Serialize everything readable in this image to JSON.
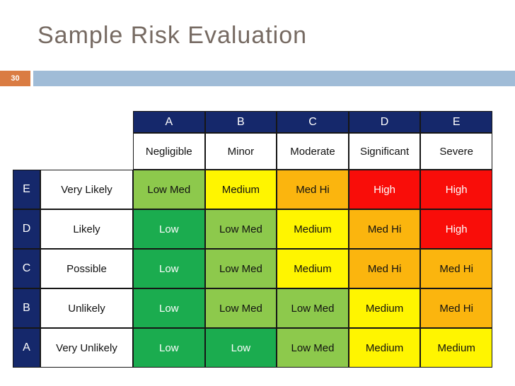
{
  "slide": {
    "title": "Sample Risk Evaluation",
    "page_number": "30"
  },
  "colors": {
    "navy": "#15286b",
    "green": "#1bac4f",
    "light_green": "#8dc94c",
    "yellow": "#fff500",
    "orange": "#fbb50e",
    "red": "#f90d09",
    "accent_bar_blue": "#a0bcd7",
    "page_number_orange": "#da7c43",
    "title_text": "#766a62"
  },
  "matrix": {
    "column_letters": [
      "A",
      "B",
      "C",
      "D",
      "E"
    ],
    "severity_labels": [
      "Negligible",
      "Minor",
      "Moderate",
      "Significant",
      "Severe"
    ],
    "rows": [
      {
        "letter": "E",
        "likelihood": "Very Likely",
        "cells": [
          "Low Med",
          "Medium",
          "Med Hi",
          "High",
          "High"
        ]
      },
      {
        "letter": "D",
        "likelihood": "Likely",
        "cells": [
          "Low",
          "Low Med",
          "Medium",
          "Med Hi",
          "High"
        ]
      },
      {
        "letter": "C",
        "likelihood": "Possible",
        "cells": [
          "Low",
          "Low Med",
          "Medium",
          "Med Hi",
          "Med Hi"
        ]
      },
      {
        "letter": "B",
        "likelihood": "Unlikely",
        "cells": [
          "Low",
          "Low Med",
          "Low Med",
          "Medium",
          "Med Hi"
        ]
      },
      {
        "letter": "A",
        "likelihood": "Very Unlikely",
        "cells": [
          "Low",
          "Low",
          "Low Med",
          "Medium",
          "Medium"
        ]
      }
    ]
  }
}
